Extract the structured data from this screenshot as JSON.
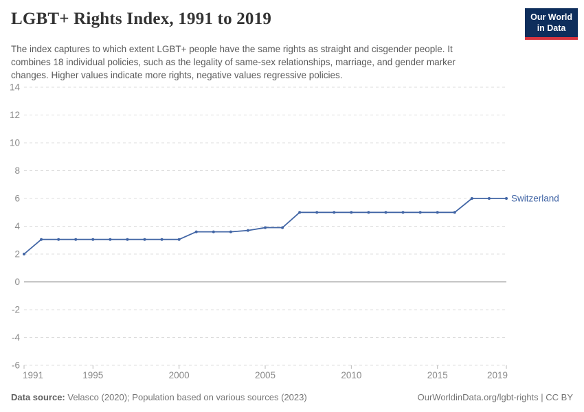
{
  "header": {
    "title": "LGBT+ Rights Index, 1991 to 2019",
    "logo": {
      "line1": "Our World",
      "line2": "in Data",
      "bg_color": "#0e2e5c",
      "accent_color": "#d6353f"
    }
  },
  "subtitle": {
    "lines": [
      "The index captures to which extent LGBT+ people have the same rights as straight and cisgender people. It",
      "combines 18 individual policies, such as the legality of same-sex relationships, marriage, and gender marker",
      "changes. Higher values indicate more rights, negative values regressive policies."
    ]
  },
  "chart_data": {
    "type": "line",
    "title": "LGBT+ Rights Index, 1991 to 2019",
    "xlabel": "",
    "ylabel": "",
    "xlim": [
      1991,
      2019
    ],
    "ylim": [
      -6,
      14
    ],
    "x_ticks": [
      1991,
      1995,
      2000,
      2005,
      2010,
      2015,
      2019
    ],
    "y_ticks": [
      14,
      12,
      10,
      8,
      6,
      4,
      2,
      0,
      -2,
      -4,
      -6
    ],
    "grid": "horizontal-dashed",
    "zero_line": true,
    "legend_position": "end-of-line-label",
    "colors": {
      "grid": "#dcdcdc",
      "zero_line": "#a3a3a3",
      "tick": "#b9b9b9",
      "axis_text": "#8a8a8a"
    },
    "series": [
      {
        "name": "Switzerland",
        "color": "#4165a5",
        "x": [
          1991,
          1992,
          1993,
          1994,
          1995,
          1996,
          1997,
          1998,
          1999,
          2000,
          2001,
          2002,
          2003,
          2004,
          2005,
          2006,
          2007,
          2008,
          2009,
          2010,
          2011,
          2012,
          2013,
          2014,
          2015,
          2016,
          2017,
          2018,
          2019
        ],
        "values": [
          2,
          3.05,
          3.05,
          3.05,
          3.05,
          3.05,
          3.05,
          3.05,
          3.05,
          3.05,
          3.6,
          3.6,
          3.6,
          3.7,
          3.9,
          3.9,
          5,
          5,
          5,
          5,
          5,
          5,
          5,
          5,
          5,
          5,
          6,
          6,
          6
        ]
      }
    ]
  },
  "footer": {
    "datasource_label": "Data source:",
    "datasource_text": " Velasco (2020); Population based on various sources (2023)",
    "link_text": "OurWorldinData.org/lgbt-rights | CC BY"
  }
}
